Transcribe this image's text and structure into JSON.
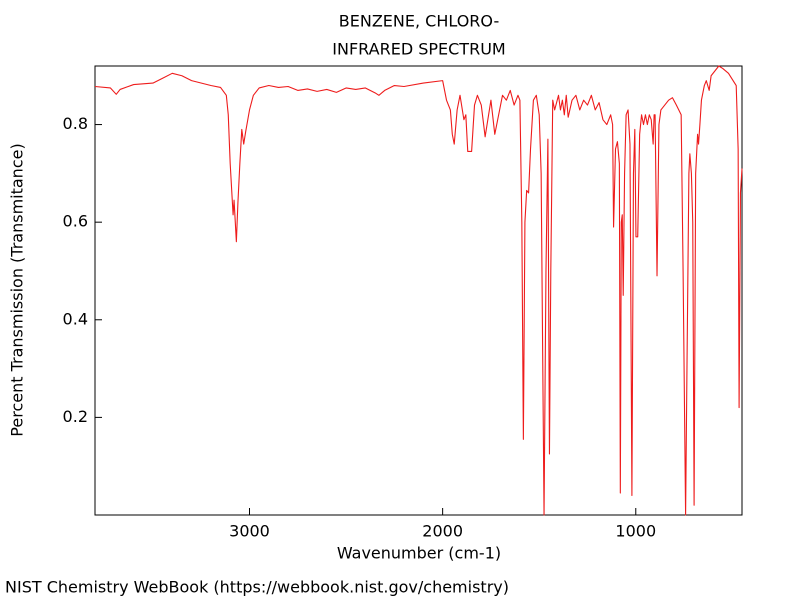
{
  "chart_data": {
    "type": "line",
    "title": "BENZENE, CHLORO-",
    "subtitle": "INFRARED SPECTRUM",
    "x_label": "Wavenumber (cm-1)",
    "y_label": "Percent Transmission (Transmitance)",
    "footer": "NIST Chemistry WebBook (https://webbook.nist.gov/chemistry)",
    "xlim": [
      3800,
      450
    ],
    "ylim": [
      0,
      0.92
    ],
    "xticks": [
      3000,
      2000,
      1000
    ],
    "yticks": [
      0.2,
      0.4,
      0.6,
      0.8
    ],
    "x": [
      3800,
      3720,
      3690,
      3670,
      3600,
      3500,
      3450,
      3400,
      3350,
      3300,
      3200,
      3150,
      3120,
      3110,
      3100,
      3085,
      3080,
      3068,
      3060,
      3050,
      3040,
      3030,
      3020,
      3000,
      2980,
      2950,
      2900,
      2850,
      2800,
      2750,
      2700,
      2650,
      2600,
      2550,
      2500,
      2450,
      2400,
      2350,
      2330,
      2300,
      2250,
      2200,
      2100,
      2000,
      1980,
      1960,
      1950,
      1940,
      1925,
      1910,
      1890,
      1880,
      1870,
      1850,
      1835,
      1820,
      1800,
      1780,
      1770,
      1750,
      1730,
      1710,
      1690,
      1670,
      1650,
      1630,
      1610,
      1600,
      1590,
      1582,
      1574,
      1565,
      1555,
      1545,
      1530,
      1515,
      1500,
      1490,
      1475,
      1465,
      1455,
      1447,
      1440,
      1430,
      1420,
      1400,
      1390,
      1380,
      1370,
      1360,
      1350,
      1330,
      1310,
      1290,
      1270,
      1250,
      1230,
      1210,
      1190,
      1170,
      1150,
      1130,
      1120,
      1115,
      1105,
      1095,
      1085,
      1080,
      1075,
      1070,
      1065,
      1058,
      1050,
      1040,
      1030,
      1020,
      1012,
      1005,
      999,
      990,
      980,
      970,
      960,
      950,
      940,
      930,
      920,
      910,
      905,
      900,
      890,
      880,
      870,
      850,
      830,
      810,
      790,
      765,
      755,
      742,
      735,
      725,
      720,
      712,
      705,
      698,
      690,
      680,
      675,
      668,
      660,
      645,
      635,
      620,
      610,
      590,
      570,
      550,
      520,
      480,
      470,
      465,
      458,
      450
    ],
    "series": [
      {
        "name": "Spectrum",
        "color": "#ee1c1c",
        "values": [
          0.878,
          0.875,
          0.862,
          0.872,
          0.882,
          0.885,
          0.895,
          0.905,
          0.9,
          0.89,
          0.88,
          0.876,
          0.86,
          0.82,
          0.72,
          0.615,
          0.645,
          0.56,
          0.64,
          0.72,
          0.79,
          0.76,
          0.785,
          0.83,
          0.86,
          0.875,
          0.88,
          0.876,
          0.878,
          0.87,
          0.873,
          0.868,
          0.872,
          0.866,
          0.875,
          0.872,
          0.875,
          0.865,
          0.86,
          0.87,
          0.88,
          0.878,
          0.885,
          0.89,
          0.85,
          0.83,
          0.78,
          0.76,
          0.83,
          0.86,
          0.81,
          0.82,
          0.745,
          0.745,
          0.84,
          0.86,
          0.84,
          0.775,
          0.8,
          0.85,
          0.78,
          0.82,
          0.86,
          0.85,
          0.87,
          0.84,
          0.86,
          0.85,
          0.6,
          0.155,
          0.6,
          0.665,
          0.66,
          0.75,
          0.85,
          0.86,
          0.82,
          0.7,
          0.0,
          0.5,
          0.77,
          0.125,
          0.5,
          0.85,
          0.83,
          0.86,
          0.83,
          0.85,
          0.82,
          0.86,
          0.815,
          0.85,
          0.86,
          0.83,
          0.85,
          0.84,
          0.86,
          0.83,
          0.845,
          0.81,
          0.8,
          0.82,
          0.8,
          0.59,
          0.75,
          0.765,
          0.72,
          0.045,
          0.6,
          0.615,
          0.45,
          0.7,
          0.82,
          0.83,
          0.76,
          0.04,
          0.7,
          0.79,
          0.57,
          0.57,
          0.78,
          0.82,
          0.8,
          0.82,
          0.8,
          0.82,
          0.81,
          0.76,
          0.82,
          0.82,
          0.49,
          0.8,
          0.83,
          0.84,
          0.85,
          0.855,
          0.84,
          0.82,
          0.5,
          0.0,
          0.3,
          0.7,
          0.74,
          0.7,
          0.6,
          0.02,
          0.7,
          0.78,
          0.76,
          0.8,
          0.85,
          0.88,
          0.89,
          0.87,
          0.9,
          0.91,
          0.92,
          0.915,
          0.905,
          0.88,
          0.75,
          0.22,
          0.66,
          0.71
        ]
      }
    ]
  }
}
